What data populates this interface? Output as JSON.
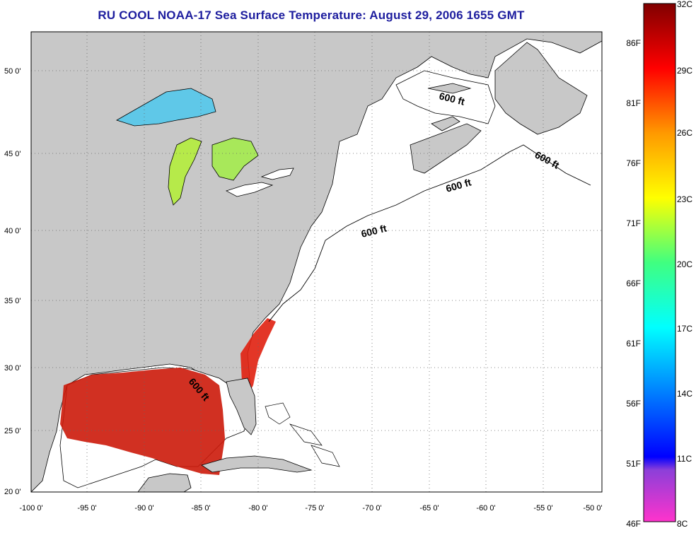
{
  "title": "RU COOL  NOAA-17  Sea Surface Temperature:  August 29, 2006 1655 GMT",
  "map": {
    "lon_ticks": [
      "-100 0'",
      "-95 0'",
      "-90 0'",
      "-85 0'",
      "-80 0'",
      "-75 0'",
      "-70 0'",
      "-65 0'",
      "-60 0'",
      "-55 0'",
      "-50 0'"
    ],
    "lat_ticks": [
      "50 0'",
      "45 0'",
      "40 0'",
      "35 0'",
      "30 0'",
      "25 0'",
      "20 0'"
    ],
    "lon_range": [
      -100,
      -50
    ],
    "lat_range": [
      20,
      52.5
    ],
    "gridlines": true,
    "grid_style": "dotted",
    "land_color": "#c8c8c8",
    "ocean_color": "#ffffff",
    "contour_labels": [
      "600 ft",
      "600 ft",
      "600 ft",
      "600 ft",
      "600 ft"
    ]
  },
  "colorbar": {
    "celsius_labels": [
      "32C",
      "29C",
      "26C",
      "23C",
      "20C",
      "17C",
      "14C",
      "11C",
      "8C"
    ],
    "fahrenheit_labels": [
      "86F",
      "81F",
      "76F",
      "71F",
      "66F",
      "61F",
      "56F",
      "51F",
      "46F"
    ],
    "range_c": [
      8,
      32
    ]
  }
}
